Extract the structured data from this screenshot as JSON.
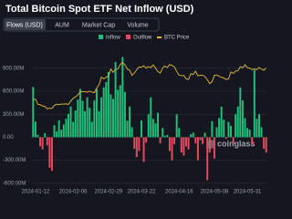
{
  "title": "Total Bitcoin Spot ETF Net Inflow (USD)",
  "tabs": [
    "Flows (USD)",
    "AUM",
    "Market Cap",
    "Volume"
  ],
  "chart_data": {
    "type": "bar",
    "legend": [
      {
        "name": "Inflow",
        "color": "#21c07a"
      },
      {
        "name": "Outflow",
        "color": "#e84a5f"
      }
    ],
    "categories": [
      null,
      "2024-01-12",
      null,
      null,
      null,
      null,
      null,
      null,
      null,
      null,
      null,
      null,
      null,
      null,
      null,
      null,
      null,
      "2024-02-06",
      null,
      null,
      null,
      null,
      null,
      null,
      null,
      null,
      null,
      null,
      null,
      null,
      null,
      null,
      "2024-02-29",
      null,
      null,
      null,
      null,
      null,
      null,
      null,
      null,
      null,
      null,
      null,
      null,
      null,
      "2024-03-22",
      null,
      null,
      null,
      null,
      null,
      null,
      null,
      null,
      null,
      null,
      null,
      null,
      null,
      null,
      null,
      "2024-04-16",
      null,
      null,
      null,
      null,
      null,
      null,
      null,
      null,
      null,
      null,
      null,
      null,
      null,
      null,
      "2024-05-08",
      null,
      null,
      null,
      null,
      null,
      null,
      null,
      null,
      null,
      null,
      null,
      null,
      null,
      "2024-05-31",
      null,
      null,
      null,
      null,
      null,
      null,
      null,
      null
    ],
    "values": [
      655,
      203,
      30,
      -118,
      -158,
      53,
      -106,
      -396,
      -438,
      158,
      75,
      220,
      98,
      165,
      240,
      305,
      400,
      200,
      350,
      490,
      630,
      475,
      340,
      520,
      385,
      200,
      480,
      630,
      340,
      520,
      650,
      720,
      850,
      560,
      500,
      980,
      620,
      680,
      1045,
      590,
      215,
      400,
      130,
      -150,
      -260,
      -180,
      220,
      -320,
      -70,
      300,
      520,
      240,
      180,
      320,
      -80,
      120,
      20,
      30,
      -180,
      -300,
      -90,
      300,
      120,
      -200,
      -240,
      -120,
      -160,
      40,
      60,
      -80,
      -300,
      -40,
      -90,
      60,
      -560,
      -200,
      210,
      -280,
      130,
      250,
      400,
      230,
      -20,
      200,
      150,
      -90,
      300,
      400,
      650,
      480,
      250,
      120,
      100,
      -100,
      880,
      240,
      300,
      130,
      -150,
      -200
    ],
    "line": {
      "name": "BTC Price",
      "color": "#e8b83a",
      "axis": "y2",
      "values": [
        46100,
        46600,
        42800,
        42500,
        41700,
        41300,
        39600,
        40000,
        39900,
        42000,
        43000,
        42600,
        43100,
        42900,
        43200,
        42700,
        45300,
        47100,
        48200,
        49700,
        51800,
        52100,
        51900,
        51600,
        52300,
        51700,
        51300,
        54500,
        57100,
        62500,
        61200,
        62400,
        63100,
        68300,
        66000,
        68200,
        68300,
        71600,
        73100,
        71400,
        68300,
        67600,
        63800,
        65500,
        67900,
        69900,
        69700,
        70700,
        69000,
        70100,
        69400,
        71300,
        69000,
        66500,
        65400,
        69100,
        70600,
        69400,
        71600,
        70900,
        70000,
        66500,
        64000,
        63500,
        63700,
        61300,
        60800,
        64900,
        64500,
        66800,
        63400,
        63800,
        63900,
        62900,
        60600,
        57800,
        59100,
        63800,
        64100,
        63100,
        62400,
        61800,
        60800,
        61200,
        66200,
        65200,
        66900,
        67100,
        70100,
        69200,
        71400,
        69300,
        69000,
        67900,
        68500,
        67900,
        69500,
        68300,
        67500,
        69100
      ]
    },
    "ylim": [
      -650,
      1100
    ],
    "yticks": [
      {
        "value": -600,
        "label": "-600.00M"
      },
      {
        "value": -300,
        "label": "-300.00M"
      },
      {
        "value": 0,
        "label": "0.00"
      },
      {
        "value": 300,
        "label": "300.00M"
      },
      {
        "value": 600,
        "label": "600.00M"
      },
      {
        "value": 900,
        "label": "900.00M"
      }
    ],
    "y2lim": [
      -17000,
      80000
    ],
    "grid": true,
    "watermark": "coinglass"
  }
}
